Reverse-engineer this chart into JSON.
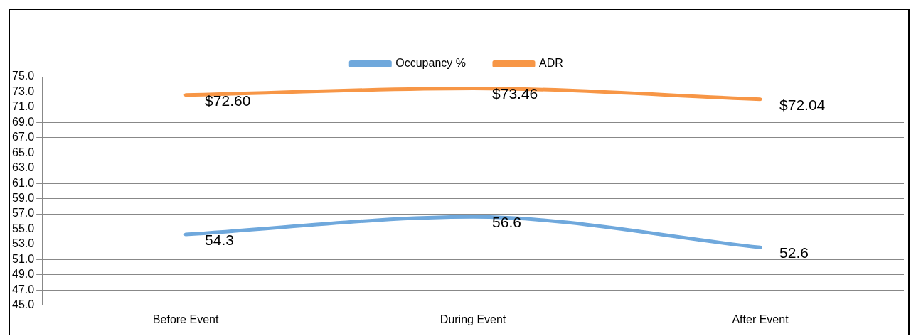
{
  "chart_data": {
    "type": "line",
    "categories": [
      "Before Event",
      "During Event",
      "After Event"
    ],
    "series": [
      {
        "name": "Occupancy %",
        "color": "#6fa8dc",
        "values": [
          54.3,
          56.6,
          52.6
        ],
        "value_labels": [
          "54.3",
          "56.6",
          "52.6"
        ]
      },
      {
        "name": "ADR",
        "color": "#f79646",
        "values": [
          72.6,
          73.46,
          72.04
        ],
        "value_labels": [
          "$72.60",
          "$73.46",
          "$72.04"
        ]
      }
    ],
    "ylim": [
      45,
      75
    ],
    "yticks": [
      {
        "value": 45,
        "label": "45.0"
      },
      {
        "value": 47,
        "label": "47.0"
      },
      {
        "value": 49,
        "label": "49.0"
      },
      {
        "value": 51,
        "label": "51.0"
      },
      {
        "value": 53,
        "label": "53.0"
      },
      {
        "value": 55,
        "label": "55.0"
      },
      {
        "value": 57,
        "label": "57.0"
      },
      {
        "value": 59,
        "label": "59.0"
      },
      {
        "value": 61,
        "label": "61.0"
      },
      {
        "value": 63,
        "label": "63.0"
      },
      {
        "value": 65,
        "label": "65.0"
      },
      {
        "value": 67,
        "label": "67.0"
      },
      {
        "value": 69,
        "label": "69.0"
      },
      {
        "value": 71,
        "label": "71.0"
      },
      {
        "value": 73,
        "label": "73.0"
      },
      {
        "value": 75,
        "label": "75.0"
      }
    ],
    "grid": "y",
    "legend": "top",
    "marker": "none",
    "line_style": "solid"
  }
}
